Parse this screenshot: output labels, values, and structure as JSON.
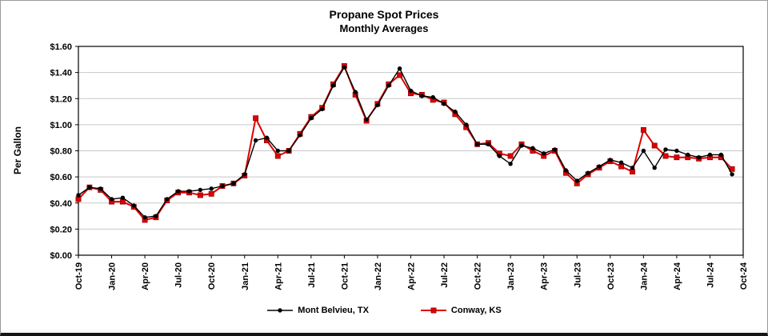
{
  "chart_data": {
    "type": "line",
    "title": "Propane Spot Prices",
    "subtitle": "Monthly Averages",
    "ylabel": "Per Gallon",
    "xlabel": "",
    "ylim": [
      0,
      1.6
    ],
    "y_tick_step": 0.2,
    "grid": "horizontal",
    "legend_position": "bottom",
    "y_tick_labels": [
      "$0.00",
      "$0.20",
      "$0.40",
      "$0.60",
      "$0.80",
      "$1.00",
      "$1.20",
      "$1.40",
      "$1.60"
    ],
    "x_tick_labels": [
      "Oct-19",
      "Jan-20",
      "Apr-20",
      "Jul-20",
      "Oct-20",
      "Jan-21",
      "Apr-21",
      "Jul-21",
      "Oct-21",
      "Jan-22",
      "Apr-22",
      "Jul-22",
      "Oct-22",
      "Jan-23",
      "Apr-23",
      "Jul-23",
      "Oct-23",
      "Jan-24",
      "Apr-24",
      "Jul-24",
      "Oct-24"
    ],
    "x_tick_month_indices": [
      0,
      3,
      6,
      9,
      12,
      15,
      18,
      21,
      24,
      27,
      30,
      33,
      36,
      39,
      42,
      45,
      48,
      51,
      54,
      57,
      60
    ],
    "months": [
      "Oct-19",
      "Nov-19",
      "Dec-19",
      "Jan-20",
      "Feb-20",
      "Mar-20",
      "Apr-20",
      "May-20",
      "Jun-20",
      "Jul-20",
      "Aug-20",
      "Sep-20",
      "Oct-20",
      "Nov-20",
      "Dec-20",
      "Jan-21",
      "Feb-21",
      "Mar-21",
      "Apr-21",
      "May-21",
      "Jun-21",
      "Jul-21",
      "Aug-21",
      "Sep-21",
      "Oct-21",
      "Nov-21",
      "Dec-21",
      "Jan-22",
      "Feb-22",
      "Mar-22",
      "Apr-22",
      "May-22",
      "Jun-22",
      "Jul-22",
      "Aug-22",
      "Sep-22",
      "Oct-22",
      "Nov-22",
      "Dec-22",
      "Jan-23",
      "Feb-23",
      "Mar-23",
      "Apr-23",
      "May-23",
      "Jun-23",
      "Jul-23",
      "Aug-23",
      "Sep-23",
      "Oct-23",
      "Nov-23",
      "Dec-23",
      "Jan-24",
      "Feb-24",
      "Mar-24",
      "Apr-24",
      "May-24",
      "Jun-24",
      "Jul-24",
      "Aug-24",
      "Sep-24"
    ],
    "series": [
      {
        "name": "Mont Belvieu, TX",
        "color": "#000000",
        "marker": "circle",
        "values": [
          0.46,
          0.52,
          0.51,
          0.43,
          0.44,
          0.38,
          0.29,
          0.3,
          0.43,
          0.49,
          0.49,
          0.5,
          0.51,
          0.53,
          0.55,
          0.62,
          0.88,
          0.9,
          0.8,
          0.8,
          0.92,
          1.05,
          1.12,
          1.3,
          1.44,
          1.25,
          1.04,
          1.15,
          1.3,
          1.43,
          1.26,
          1.22,
          1.21,
          1.16,
          1.1,
          1.0,
          0.85,
          0.85,
          0.76,
          0.7,
          0.84,
          0.82,
          0.78,
          0.81,
          0.65,
          0.57,
          0.63,
          0.68,
          0.73,
          0.71,
          0.67,
          0.8,
          0.67,
          0.81,
          0.8,
          0.77,
          0.75,
          0.77,
          0.77,
          0.62
        ]
      },
      {
        "name": "Conway, KS",
        "color": "#e00000",
        "marker": "square",
        "values": [
          0.43,
          0.52,
          0.5,
          0.41,
          0.41,
          0.37,
          0.27,
          0.29,
          0.42,
          0.48,
          0.48,
          0.46,
          0.47,
          0.53,
          0.55,
          0.61,
          1.05,
          0.88,
          0.76,
          0.8,
          0.93,
          1.06,
          1.13,
          1.31,
          1.45,
          1.23,
          1.03,
          1.16,
          1.31,
          1.38,
          1.24,
          1.23,
          1.19,
          1.17,
          1.08,
          0.98,
          0.85,
          0.86,
          0.78,
          0.76,
          0.85,
          0.8,
          0.76,
          0.8,
          0.63,
          0.55,
          0.62,
          0.67,
          0.72,
          0.68,
          0.64,
          0.96,
          0.84,
          0.76,
          0.75,
          0.75,
          0.74,
          0.75,
          0.75,
          0.66
        ]
      }
    ],
    "colors": {
      "grid": "#c8c8c8",
      "axis": "#000000"
    }
  }
}
